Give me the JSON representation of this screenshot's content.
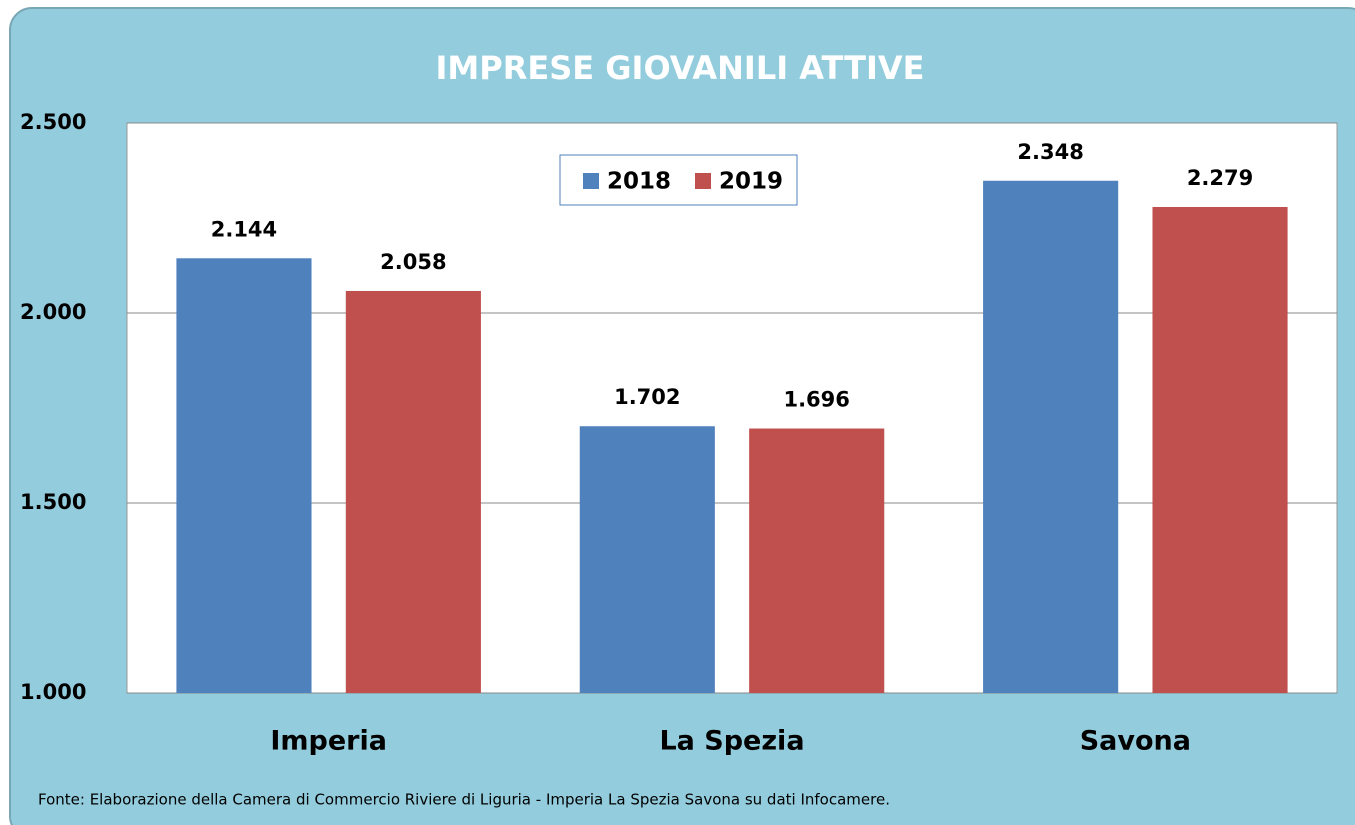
{
  "chart_data": {
    "type": "bar",
    "title": "IMPRESE GIOVANILI ATTIVE",
    "categories": [
      "Imperia",
      "La Spezia",
      "Savona"
    ],
    "series": [
      {
        "name": "2018",
        "color": "#4f81bd",
        "values": [
          2144,
          1702,
          2348
        ],
        "value_labels": [
          "2.144",
          "1.702",
          "2.348"
        ]
      },
      {
        "name": "2019",
        "color": "#c0504d",
        "values": [
          2058,
          1696,
          2279
        ],
        "value_labels": [
          "2.058",
          "1.696",
          "2.279"
        ]
      }
    ],
    "ylim": [
      1000,
      2500
    ],
    "yticks": [
      {
        "value": 1000,
        "label": "1.000"
      },
      {
        "value": 1500,
        "label": "1.500"
      },
      {
        "value": 2000,
        "label": "2.000"
      },
      {
        "value": 2500,
        "label": "2.500"
      }
    ],
    "grid": true,
    "legend": "top",
    "annotations": [
      "Fonte: Elaborazione della Camera di Commercio Riviere di Liguria - Imperia La Spezia Savona su dati Infocamere."
    ]
  }
}
